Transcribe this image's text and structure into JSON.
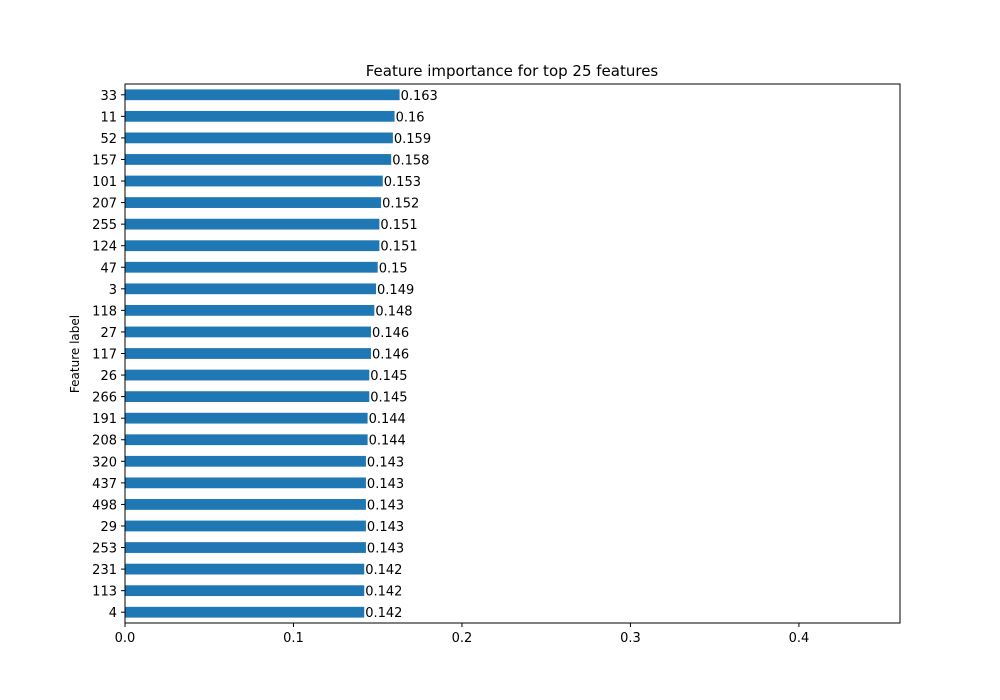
{
  "chart_data": {
    "type": "bar",
    "orientation": "horizontal",
    "title": "Feature importance for top 25 features",
    "xlabel": "",
    "ylabel": "Feature label",
    "xlim": [
      0,
      0.46
    ],
    "xticks": [
      "0.0",
      "0.1",
      "0.2",
      "0.3",
      "0.4"
    ],
    "categories": [
      "33",
      "11",
      "52",
      "157",
      "101",
      "207",
      "255",
      "124",
      "47",
      "3",
      "118",
      "27",
      "117",
      "26",
      "266",
      "191",
      "208",
      "320",
      "437",
      "498",
      "29",
      "253",
      "231",
      "113",
      "4"
    ],
    "values": [
      0.163,
      0.16,
      0.159,
      0.158,
      0.153,
      0.152,
      0.151,
      0.151,
      0.15,
      0.149,
      0.148,
      0.146,
      0.146,
      0.145,
      0.145,
      0.144,
      0.144,
      0.143,
      0.143,
      0.143,
      0.143,
      0.143,
      0.142,
      0.142,
      0.142
    ],
    "data_labels": [
      "0.163",
      "0.16",
      "0.159",
      "0.158",
      "0.153",
      "0.152",
      "0.151",
      "0.151",
      "0.15",
      "0.149",
      "0.148",
      "0.146",
      "0.146",
      "0.145",
      "0.145",
      "0.144",
      "0.144",
      "0.143",
      "0.143",
      "0.143",
      "0.143",
      "0.143",
      "0.142",
      "0.142",
      "0.142"
    ],
    "bar_color": "#1f77b4",
    "grid": false,
    "legend": "none"
  }
}
